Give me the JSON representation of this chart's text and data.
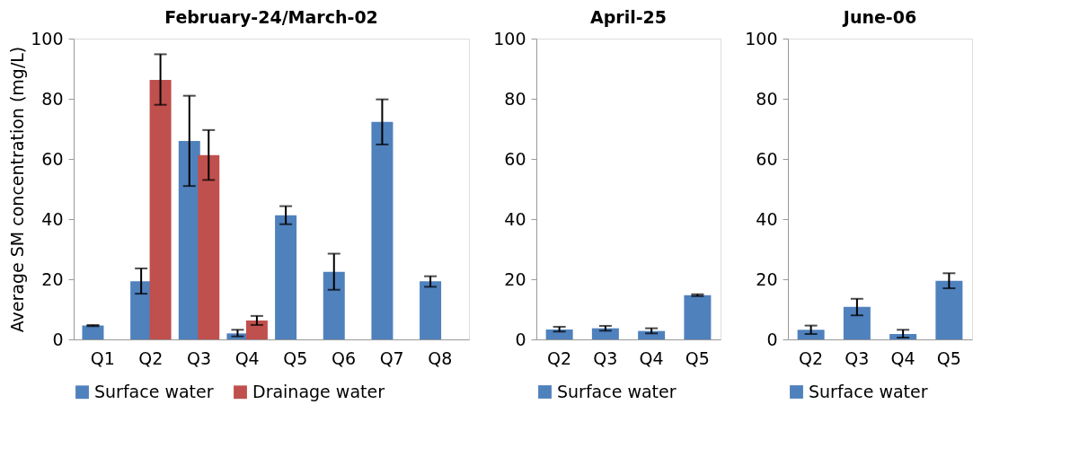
{
  "chart_data": [
    {
      "type": "bar",
      "title": "February-24/March-02",
      "ylabel": "Average SM concentration (mg/L)",
      "categories": [
        "Q1",
        "Q2",
        "Q3",
        "Q4",
        "Q5",
        "Q6",
        "Q7",
        "Q8"
      ],
      "series": [
        {
          "name": "Surface water",
          "color": "#4f81bd",
          "values": [
            4.6,
            19.3,
            66,
            2,
            41.3,
            22.5,
            72.3,
            19.3
          ],
          "errors": [
            0.2,
            [
              15.2,
              23.6
            ],
            [
              51,
              81
            ],
            [
              1,
              3.2
            ],
            [
              38.3,
              44.3
            ],
            [
              16.5,
              28.5
            ],
            [
              64.8,
              79.8
            ],
            [
              17.5,
              21
            ]
          ]
        },
        {
          "name": "Drainage water",
          "color": "#c0504d",
          "values": [
            null,
            86.3,
            61.3,
            6.3,
            null,
            null,
            null,
            null
          ],
          "errors": [
            null,
            [
              78,
              94.8
            ],
            [
              53,
              69.6
            ],
            [
              4.8,
              7.8
            ],
            null,
            null,
            null,
            null
          ]
        }
      ],
      "ylim": [
        0,
        100
      ],
      "yticks": [
        0,
        20,
        40,
        60,
        80,
        100
      ],
      "grid": false,
      "legend": "bottom"
    },
    {
      "type": "bar",
      "title": "April-25",
      "categories": [
        "Q2",
        "Q3",
        "Q4",
        "Q5"
      ],
      "series": [
        {
          "name": "Surface water",
          "color": "#4f81bd",
          "values": [
            3.3,
            3.7,
            2.8,
            14.7
          ],
          "errors": [
            [
              2.6,
              4.2
            ],
            [
              2.9,
              4.5
            ],
            [
              2,
              3.7
            ],
            [
              14.4,
              15
            ]
          ]
        }
      ],
      "ylim": [
        0,
        100
      ],
      "yticks": [
        0,
        20,
        40,
        60,
        80,
        100
      ],
      "grid": false,
      "legend": "bottom"
    },
    {
      "type": "bar",
      "title": "June-06",
      "categories": [
        "Q2",
        "Q3",
        "Q4",
        "Q5"
      ],
      "series": [
        {
          "name": "Surface water",
          "color": "#4f81bd",
          "values": [
            3.2,
            10.8,
            1.8,
            19.5
          ],
          "errors": [
            [
              1.8,
              4.6
            ],
            [
              8,
              13.5
            ],
            [
              0.6,
              3.2
            ],
            [
              17,
              22
            ]
          ]
        }
      ],
      "ylim": [
        0,
        100
      ],
      "yticks": [
        0,
        20,
        40,
        60,
        80,
        100
      ],
      "grid": false,
      "legend": "bottom"
    }
  ]
}
